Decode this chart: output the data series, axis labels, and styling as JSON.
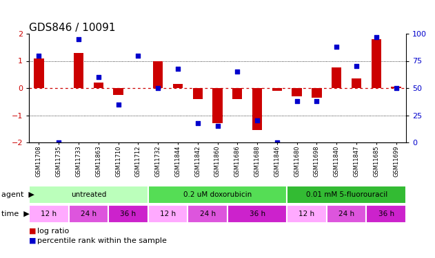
{
  "title": "GDS846 / 10091",
  "samples": [
    "GSM11708",
    "GSM11735",
    "GSM11733",
    "GSM11863",
    "GSM11710",
    "GSM11712",
    "GSM11732",
    "GSM11844",
    "GSM11842",
    "GSM11860",
    "GSM11686",
    "GSM11688",
    "GSM11846",
    "GSM11680",
    "GSM11698",
    "GSM11840",
    "GSM11847",
    "GSM11685",
    "GSM11699"
  ],
  "log_ratio": [
    1.1,
    0.0,
    1.3,
    0.2,
    -0.25,
    0.0,
    1.0,
    0.15,
    -0.4,
    -1.3,
    -0.4,
    -1.55,
    -0.1,
    -0.3,
    -0.35,
    0.75,
    0.35,
    1.8,
    0.05
  ],
  "percentile": [
    80,
    0,
    95,
    60,
    35,
    80,
    50,
    68,
    18,
    15,
    65,
    20,
    0,
    38,
    38,
    88,
    70,
    97,
    50
  ],
  "agent_groups": [
    {
      "label": "untreated",
      "start": 0,
      "end": 6,
      "color": "#bbffbb"
    },
    {
      "label": "0.2 uM doxorubicin",
      "start": 6,
      "end": 13,
      "color": "#55dd55"
    },
    {
      "label": "0.01 mM 5-fluorouracil",
      "start": 13,
      "end": 19,
      "color": "#33bb33"
    }
  ],
  "time_groups": [
    {
      "label": "12 h",
      "start": 0,
      "end": 2,
      "color": "#ffaaff"
    },
    {
      "label": "24 h",
      "start": 2,
      "end": 4,
      "color": "#dd55dd"
    },
    {
      "label": "36 h",
      "start": 4,
      "end": 6,
      "color": "#cc22cc"
    },
    {
      "label": "12 h",
      "start": 6,
      "end": 8,
      "color": "#ffaaff"
    },
    {
      "label": "24 h",
      "start": 8,
      "end": 10,
      "color": "#dd55dd"
    },
    {
      "label": "36 h",
      "start": 10,
      "end": 13,
      "color": "#cc22cc"
    },
    {
      "label": "12 h",
      "start": 13,
      "end": 15,
      "color": "#ffaaff"
    },
    {
      "label": "24 h",
      "start": 15,
      "end": 17,
      "color": "#dd55dd"
    },
    {
      "label": "36 h",
      "start": 17,
      "end": 19,
      "color": "#cc22cc"
    }
  ],
  "bar_color": "#cc0000",
  "dot_color": "#0000cc",
  "ylim_left": [
    -2,
    2
  ],
  "ylim_right": [
    0,
    100
  ],
  "yticks_left": [
    -2,
    -1,
    0,
    1,
    2
  ],
  "yticks_right": [
    0,
    25,
    50,
    75,
    100
  ],
  "hline_color": "#cc0000",
  "dotline_color": "#000000",
  "bg_color": "#ffffff",
  "label_fontsize": 8,
  "title_fontsize": 11
}
